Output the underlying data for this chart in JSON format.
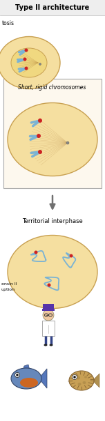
{
  "title": "Type II architecture",
  "bg_color": "#ffffff",
  "cell_color": "#f5dfa0",
  "cell_border": "#c8a050",
  "panel_bg": "#fdf5e0",
  "panel_border": "#cccccc",
  "arrow_color": "#707070",
  "text_color": "#000000",
  "label_mitosis": "tosis",
  "label_chromosomes": "Short, rigid chromosomes",
  "label_interphase": "Territorial interphase",
  "label_condensin1": "ensin II",
  "label_condensin2": "uption",
  "blue_chr": "#7ab3d4",
  "red_chr": "#cc2222",
  "fig_width": 1.52,
  "fig_height": 6.04,
  "dpi": 100
}
